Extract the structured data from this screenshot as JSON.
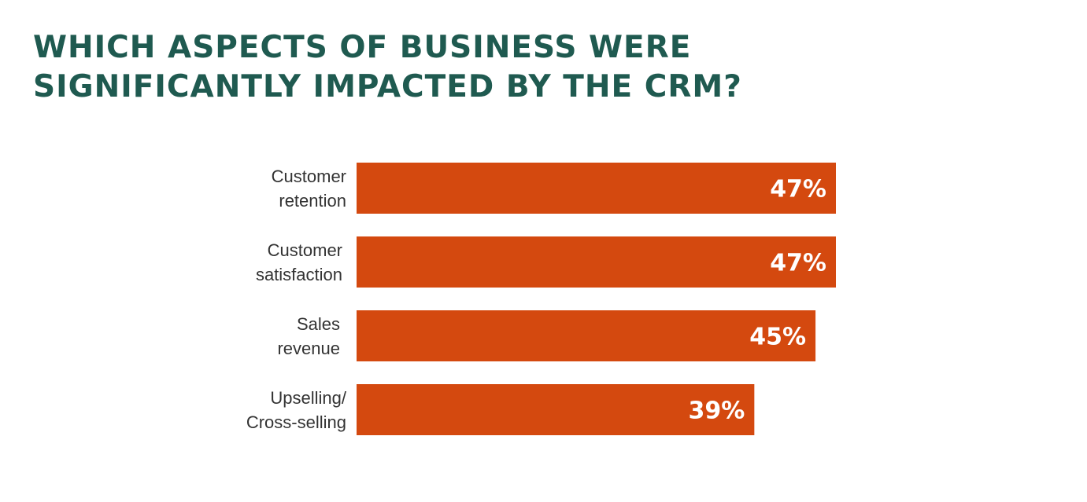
{
  "title_lines": [
    "WHICH ASPECTS OF BUSINESS WERE",
    "SIGNIFICANTLY IMPACTED BY THE CRM?"
  ],
  "colors": {
    "title": "#1f5a50",
    "bar": "#d4490f",
    "label": "#333333",
    "value_text": "#ffffff"
  },
  "chart_data": {
    "type": "bar",
    "orientation": "horizontal",
    "title": "WHICH ASPECTS OF BUSINESS WERE SIGNIFICANTLY IMPACTED BY THE CRM?",
    "categories": [
      [
        "Customer",
        "retention"
      ],
      [
        "Customer",
        "satisfaction"
      ],
      [
        "Sales",
        "revenue"
      ],
      [
        "Upselling/",
        "Cross-selling"
      ]
    ],
    "values": [
      47,
      47,
      45,
      39
    ],
    "value_labels": [
      "47%",
      "47%",
      "45%",
      "39%"
    ],
    "unit": "%",
    "xlim": [
      0,
      47
    ],
    "grid": false,
    "legend": "none"
  }
}
